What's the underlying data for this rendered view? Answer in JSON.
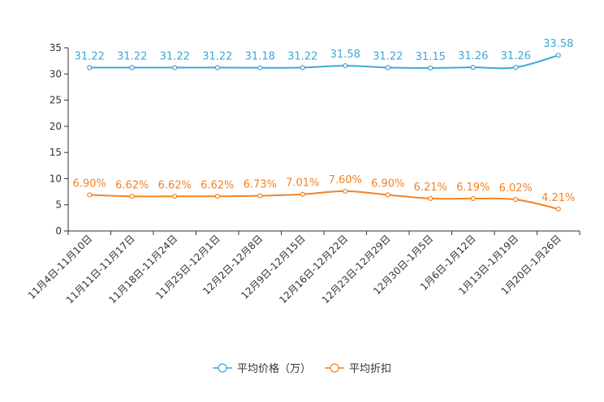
{
  "chart_data": {
    "type": "line",
    "categories": [
      "11月4日-11月10日",
      "11月11日-11月17日",
      "11月18日-11月24日",
      "11月25日-12月1日",
      "12月2日-12月8日",
      "12月9日-12月15日",
      "12月16日-12月22日",
      "12月23日-12月29日",
      "12月30日-1月5日",
      "1月6日-1月12日",
      "1月13日-1月19日",
      "1月20日-1月26日"
    ],
    "series": [
      {
        "name": "平均价格（万）",
        "color": "#3fa7d6",
        "values": [
          31.22,
          31.22,
          31.22,
          31.22,
          31.18,
          31.22,
          31.58,
          31.22,
          31.15,
          31.26,
          31.26,
          33.58
        ],
        "labels": [
          "31.22",
          "31.22",
          "31.22",
          "31.22",
          "31.18",
          "31.22",
          "31.58",
          "31.22",
          "31.15",
          "31.26",
          "31.26",
          "33.58"
        ]
      },
      {
        "name": "平均折扣",
        "color": "#f58220",
        "values": [
          6.9,
          6.62,
          6.62,
          6.62,
          6.73,
          7.01,
          7.6,
          6.9,
          6.21,
          6.19,
          6.02,
          4.21
        ],
        "labels": [
          "6.90%",
          "6.62%",
          "6.62%",
          "6.62%",
          "6.73%",
          "7.01%",
          "7.60%",
          "6.90%",
          "6.21%",
          "6.19%",
          "6.02%",
          "4.21%"
        ]
      }
    ],
    "yticks": [
      "0",
      "5",
      "10",
      "15",
      "20",
      "25",
      "30",
      "35"
    ],
    "ylim": [
      0,
      35
    ],
    "legend_position": "bottom-center"
  }
}
